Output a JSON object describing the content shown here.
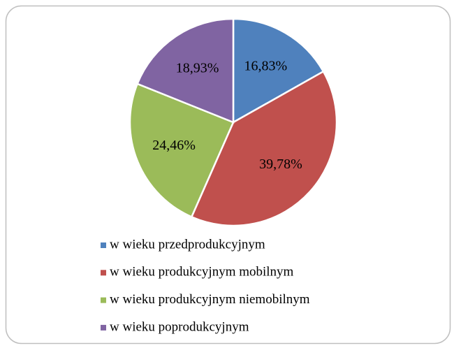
{
  "chart_data": {
    "type": "pie",
    "categories": [
      "w wieku przedprodukcyjnym",
      "w wieku produkcyjnym mobilnym",
      "w wieku produkcyjnym niemobilnym",
      "w wieku poprodukcyjnym"
    ],
    "values": [
      16.83,
      39.78,
      24.46,
      18.93
    ],
    "value_labels": [
      "16,83%",
      "39,78%",
      "24,46%",
      "18,93%"
    ],
    "colors": [
      "#4f81bd",
      "#c0504d",
      "#9bbb59",
      "#8064a2"
    ],
    "legend": "bottom"
  }
}
